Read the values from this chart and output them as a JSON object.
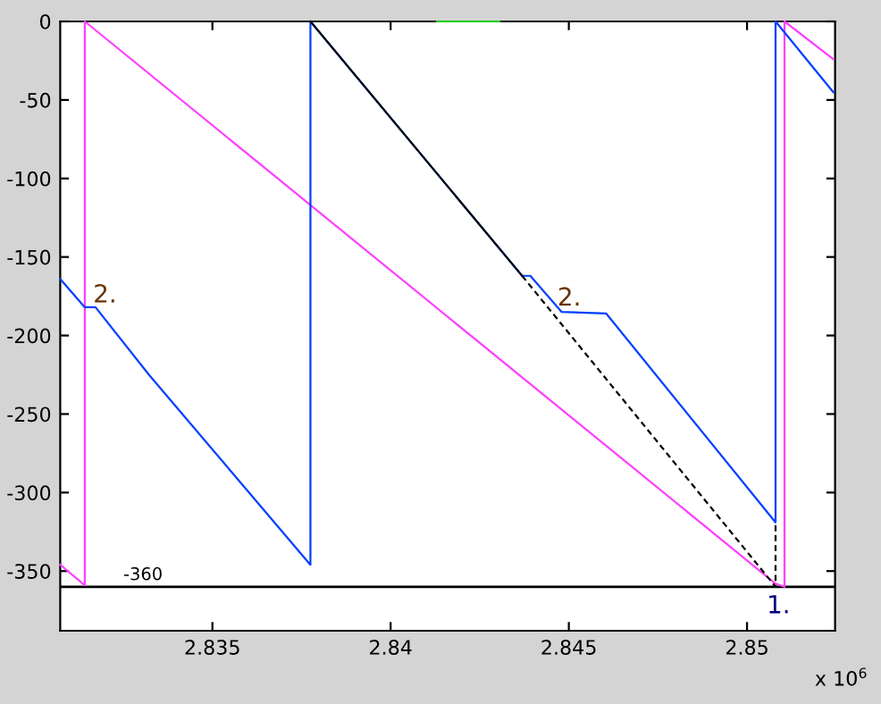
{
  "chart_data": {
    "type": "line",
    "xlim": [
      2.83073,
      2.85247
    ],
    "ylim": [
      -388,
      0
    ],
    "xticks": [
      2.835,
      2.84,
      2.845,
      2.85
    ],
    "yticks": [
      -350,
      -300,
      -250,
      -200,
      -150,
      -100,
      -50,
      0
    ],
    "grid": false,
    "legend": false,
    "marker": "none",
    "series": [
      {
        "color": "#ff40ff",
        "x": [
          2.83073,
          2.83142,
          2.83142,
          2.8508,
          2.85105,
          2.85105,
          2.85242
        ],
        "values": [
          -346,
          -359,
          0,
          -358,
          -360,
          0,
          -24
        ]
      },
      {
        "color": "#0040ff",
        "x": [
          2.83073,
          2.83142,
          2.83172,
          2.83322,
          2.83775,
          2.83775,
          2.84369,
          2.84392,
          2.8448,
          2.84605,
          2.8508,
          2.8508,
          2.85242
        ],
        "values": [
          -164,
          -182,
          -182,
          -225,
          -346,
          0,
          -162,
          -162,
          -185,
          -186,
          -319,
          0,
          -45
        ]
      },
      {
        "color": "#000000",
        "x": [
          2.83775,
          2.84369
        ],
        "values": [
          0,
          -162
        ]
      },
      {
        "color": "#000000",
        "line_style": "dashed",
        "x": [
          2.84369,
          2.8508,
          2.8508
        ],
        "values": [
          -162,
          -360,
          -319
        ]
      },
      {
        "color": "#00cc00",
        "x": [
          2.8413,
          2.84305
        ],
        "values": [
          0,
          0
        ]
      }
    ],
    "ref_lines": [
      {
        "axis": "y",
        "value": -360,
        "label": "-360",
        "color": "#000000"
      }
    ],
    "annotations": [
      "2.",
      "2.",
      "1.",
      "x 10$^{6}$"
    ]
  }
}
